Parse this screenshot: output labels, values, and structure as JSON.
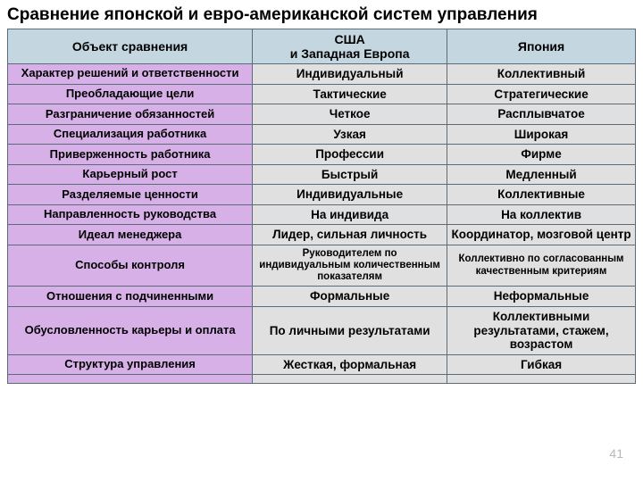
{
  "title": "Сравнение японской и евро-американской  систем управления",
  "pageNumber": "41",
  "colors": {
    "header_bg": "#c4d6e0",
    "rowlabel_bg": "#d7b0e8",
    "cell_bg": "#e0e0e0",
    "border": "#5a6b7a",
    "title_color": "#000000",
    "pagenum_color": "#b8b8b8"
  },
  "typography": {
    "title_fontsize": 19,
    "header_fontsize": 14,
    "body_fontsize": 13.5,
    "small_fontsize": 11.5,
    "font_family": "Arial",
    "font_weight": "bold"
  },
  "table": {
    "type": "table",
    "column_widths_pct": [
      39,
      31,
      30
    ],
    "columns": [
      "Объект сравнения",
      "США\nи Западная Европа",
      "Япония"
    ],
    "rows": [
      {
        "label": "Характер решений и ответственности",
        "west": "Индивидуальный",
        "japan": "Коллективный"
      },
      {
        "label": "Преобладающие цели",
        "west": "Тактические",
        "japan": "Стратегические"
      },
      {
        "label": "Разграничение обязанностей",
        "west": "Четкое",
        "japan": "Расплывчатое"
      },
      {
        "label": "Специализация работника",
        "west": "Узкая",
        "japan": "Широкая"
      },
      {
        "label": "Приверженность работника",
        "west": "Профессии",
        "japan": "Фирме"
      },
      {
        "label": "Карьерный рост",
        "west": "Быстрый",
        "japan": "Медленный"
      },
      {
        "label": "Разделяемые ценности",
        "west": "Индивидуальные",
        "japan": "Коллективные"
      },
      {
        "label": "Направленность руководства",
        "west": "На индивида",
        "japan": "На коллектив"
      },
      {
        "label": "Идеал менеджера",
        "west": "Лидер, сильная личность",
        "japan": "Координатор, мозговой центр"
      },
      {
        "label": "Способы контроля",
        "west": "Руководителем по индивидуальным количественным показателям",
        "japan": "Коллективно по согласованным качественным критериям",
        "small": true
      },
      {
        "label": "Отношения с подчиненными",
        "west": "Формальные",
        "japan": "Неформальные"
      },
      {
        "label": "Обусловленность карьеры и оплата",
        "west": "По личными результатами",
        "japan": "Коллективными результатами, стажем, возрастом"
      },
      {
        "label": "Структура управления",
        "west": "Жесткая, формальная",
        "japan": "Гибкая"
      }
    ]
  }
}
